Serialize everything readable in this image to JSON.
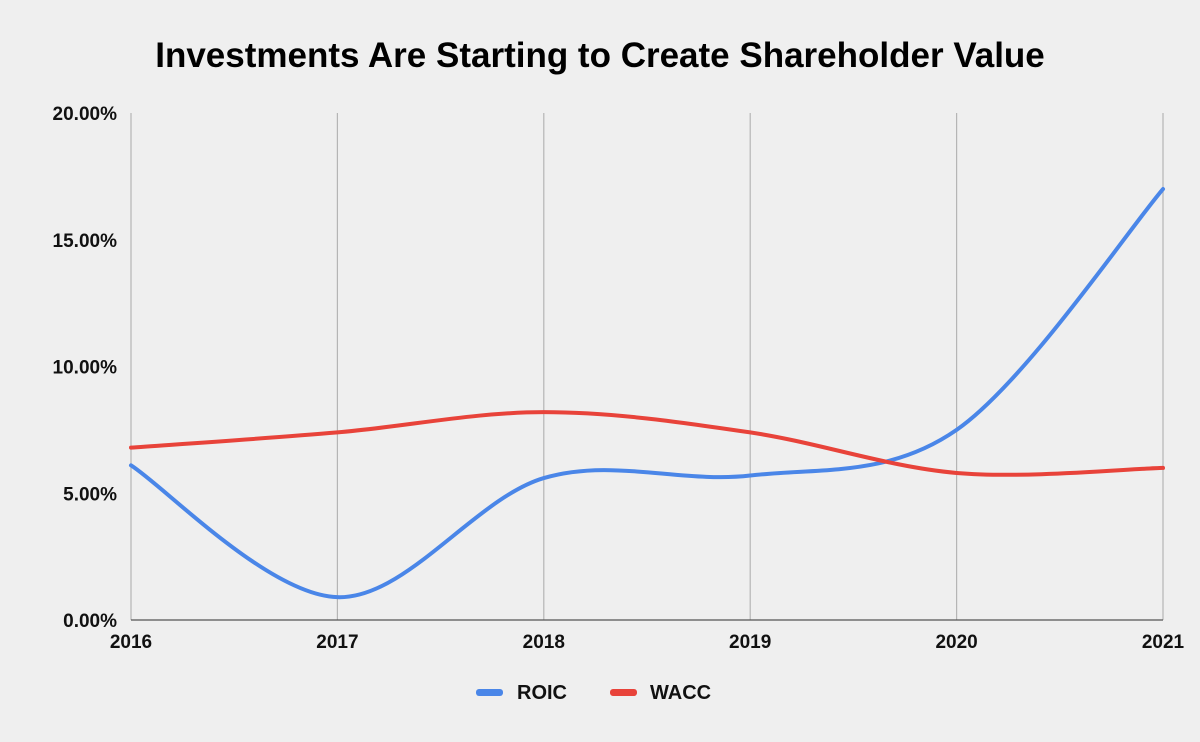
{
  "chart_data": {
    "type": "line",
    "title": "Investments Are Starting to Create Shareholder Value",
    "xlabel": "",
    "ylabel": "",
    "categories": [
      "2016",
      "2017",
      "2018",
      "2019",
      "2020",
      "2021"
    ],
    "y_ticks": [
      "0.00%",
      "5.00%",
      "10.00%",
      "15.00%",
      "20.00%"
    ],
    "ylim": [
      0,
      20
    ],
    "grid": "vertical",
    "legend_position": "bottom",
    "smooth": true,
    "series": [
      {
        "name": "ROIC",
        "color": "#4a86e8",
        "values": [
          6.1,
          0.9,
          5.6,
          5.7,
          7.5,
          17.0
        ]
      },
      {
        "name": "WACC",
        "color": "#e8433a",
        "values": [
          6.8,
          7.4,
          8.2,
          7.4,
          5.8,
          6.0
        ]
      }
    ]
  }
}
